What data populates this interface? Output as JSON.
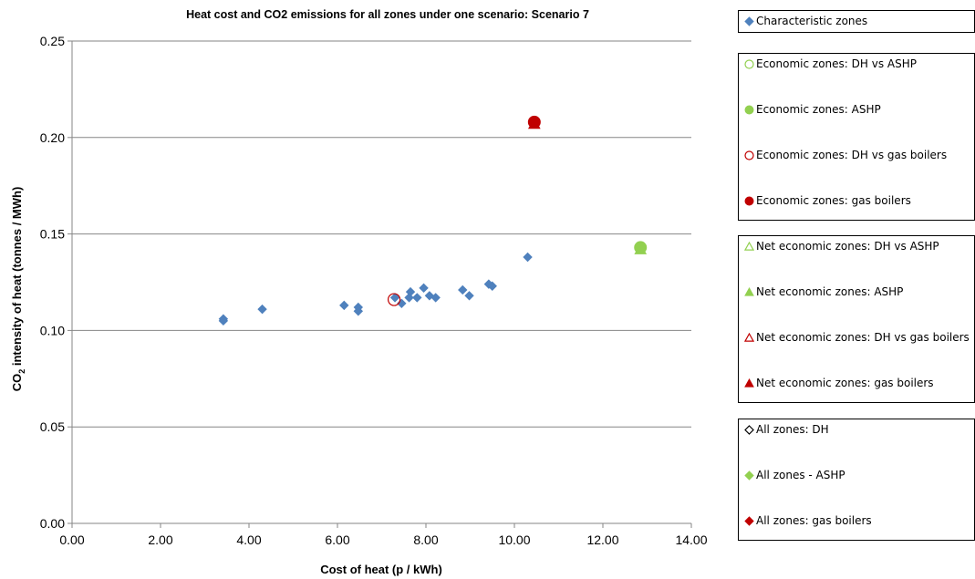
{
  "chart_data": {
    "type": "scatter",
    "title": "Heat cost and CO2 emissions for all zones under one scenario: Scenario 7",
    "xlabel": "Cost of heat (p / kWh)",
    "ylabel_main": "CO",
    "ylabel_sub": "2",
    "ylabel_rest": " intensity of heat (tonnes / MWh)",
    "xlim": [
      0,
      14
    ],
    "ylim": [
      0,
      0.25
    ],
    "xticks": [
      "0.00",
      "2.00",
      "4.00",
      "6.00",
      "8.00",
      "10.00",
      "12.00",
      "14.00"
    ],
    "yticks": [
      "0.00",
      "0.05",
      "0.10",
      "0.15",
      "0.20",
      "0.25"
    ],
    "grid": "horizontal",
    "series": [
      {
        "name": "Characteristic zones",
        "marker": "diamond",
        "color": "#4f81bd",
        "filled": true,
        "points": [
          [
            3.42,
            0.106
          ],
          [
            3.42,
            0.105
          ],
          [
            4.3,
            0.111
          ],
          [
            6.15,
            0.113
          ],
          [
            6.47,
            0.112
          ],
          [
            6.47,
            0.11
          ],
          [
            7.3,
            0.117
          ],
          [
            7.45,
            0.114
          ],
          [
            7.62,
            0.117
          ],
          [
            7.65,
            0.12
          ],
          [
            7.8,
            0.117
          ],
          [
            7.95,
            0.122
          ],
          [
            8.08,
            0.118
          ],
          [
            8.22,
            0.117
          ],
          [
            8.83,
            0.121
          ],
          [
            8.98,
            0.118
          ],
          [
            9.42,
            0.124
          ],
          [
            9.5,
            0.123
          ],
          [
            10.3,
            0.138
          ]
        ]
      },
      {
        "name": "Economic zones: DH vs ASHP",
        "marker": "circle",
        "color": "#92d050",
        "filled": false,
        "points": []
      },
      {
        "name": "Economic zones: ASHP",
        "marker": "circle",
        "color": "#92d050",
        "filled": true,
        "points": [
          [
            12.85,
            0.143
          ]
        ]
      },
      {
        "name": "Economic zones: DH vs gas boilers",
        "marker": "circle",
        "color": "#c00000",
        "filled": false,
        "points": [
          [
            7.28,
            0.116
          ]
        ]
      },
      {
        "name": "Economic zones: gas boilers",
        "marker": "circle",
        "color": "#c00000",
        "filled": true,
        "points": [
          [
            10.45,
            0.208
          ]
        ]
      },
      {
        "name": "Net economic zones: DH vs ASHP",
        "marker": "triangle",
        "color": "#92d050",
        "filled": false,
        "points": []
      },
      {
        "name": "Net economic zones: ASHP",
        "marker": "triangle",
        "color": "#92d050",
        "filled": true,
        "points": [
          [
            12.85,
            0.142
          ]
        ]
      },
      {
        "name": "Net economic zones: DH vs gas boilers",
        "marker": "triangle",
        "color": "#c00000",
        "filled": false,
        "points": []
      },
      {
        "name": "Net economic zones: gas boilers",
        "marker": "triangle",
        "color": "#c00000",
        "filled": true,
        "points": [
          [
            10.45,
            0.207
          ]
        ]
      },
      {
        "name": "All zones: DH",
        "marker": "diamond",
        "color": "#000000",
        "filled": false,
        "points": []
      },
      {
        "name": "All zones - ASHP",
        "marker": "diamond",
        "color": "#92d050",
        "filled": true,
        "points": []
      },
      {
        "name": "All zones: gas boilers",
        "marker": "diamond",
        "color": "#c00000",
        "filled": true,
        "points": []
      }
    ]
  },
  "legend": {
    "groups": [
      {
        "items": [
          0
        ]
      },
      {
        "items": [
          1,
          2,
          3,
          4
        ]
      },
      {
        "items": [
          5,
          6,
          7,
          8
        ]
      },
      {
        "items": [
          9,
          10,
          11
        ]
      }
    ]
  }
}
